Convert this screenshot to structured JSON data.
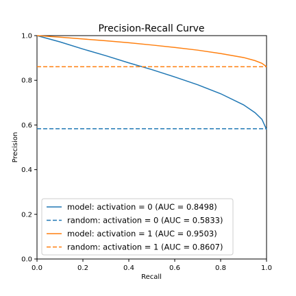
{
  "chart_data": {
    "type": "line",
    "title": "Precision-Recall Curve",
    "xlabel": "Recall",
    "ylabel": "Precision",
    "xlim": [
      0.0,
      1.0
    ],
    "ylim": [
      0.0,
      1.0
    ],
    "xticks": [
      0.0,
      0.2,
      0.4,
      0.6,
      0.8,
      1.0
    ],
    "yticks": [
      0.0,
      0.2,
      0.4,
      0.6,
      0.8,
      1.0
    ],
    "xtick_labels": [
      "0.0",
      "0.2",
      "0.4",
      "0.6",
      "0.8",
      "1.0"
    ],
    "ytick_labels": [
      "0.0",
      "0.2",
      "0.4",
      "0.6",
      "0.8",
      "1.0"
    ],
    "grid": false,
    "legend_position": "lower-left",
    "series": [
      {
        "name": "model: activation = 0 (AUC = 0.8498)",
        "color": "#1f77b4",
        "style": "solid",
        "x": [
          0.0,
          0.1,
          0.2,
          0.3,
          0.4,
          0.5,
          0.6,
          0.7,
          0.8,
          0.9,
          0.95,
          0.98,
          1.0
        ],
        "y": [
          1.0,
          0.972,
          0.94,
          0.91,
          0.878,
          0.848,
          0.815,
          0.78,
          0.74,
          0.69,
          0.655,
          0.625,
          0.58
        ]
      },
      {
        "name": "random: activation = 0 (AUC = 0.5833)",
        "color": "#1f77b4",
        "style": "dashed",
        "x": [
          0.0,
          1.0
        ],
        "y": [
          0.5833,
          0.5833
        ]
      },
      {
        "name": "model: activation = 1 (AUC = 0.9503)",
        "color": "#ff7f0e",
        "style": "solid",
        "x": [
          0.0,
          0.1,
          0.2,
          0.3,
          0.4,
          0.5,
          0.6,
          0.7,
          0.8,
          0.9,
          0.95,
          0.98,
          1.0
        ],
        "y": [
          1.0,
          0.993,
          0.985,
          0.977,
          0.968,
          0.958,
          0.947,
          0.935,
          0.92,
          0.902,
          0.888,
          0.876,
          0.8607
        ]
      },
      {
        "name": "random: activation = 1 (AUC = 0.8607)",
        "color": "#ff7f0e",
        "style": "dashed",
        "x": [
          0.0,
          1.0
        ],
        "y": [
          0.8607,
          0.8607
        ]
      }
    ]
  }
}
